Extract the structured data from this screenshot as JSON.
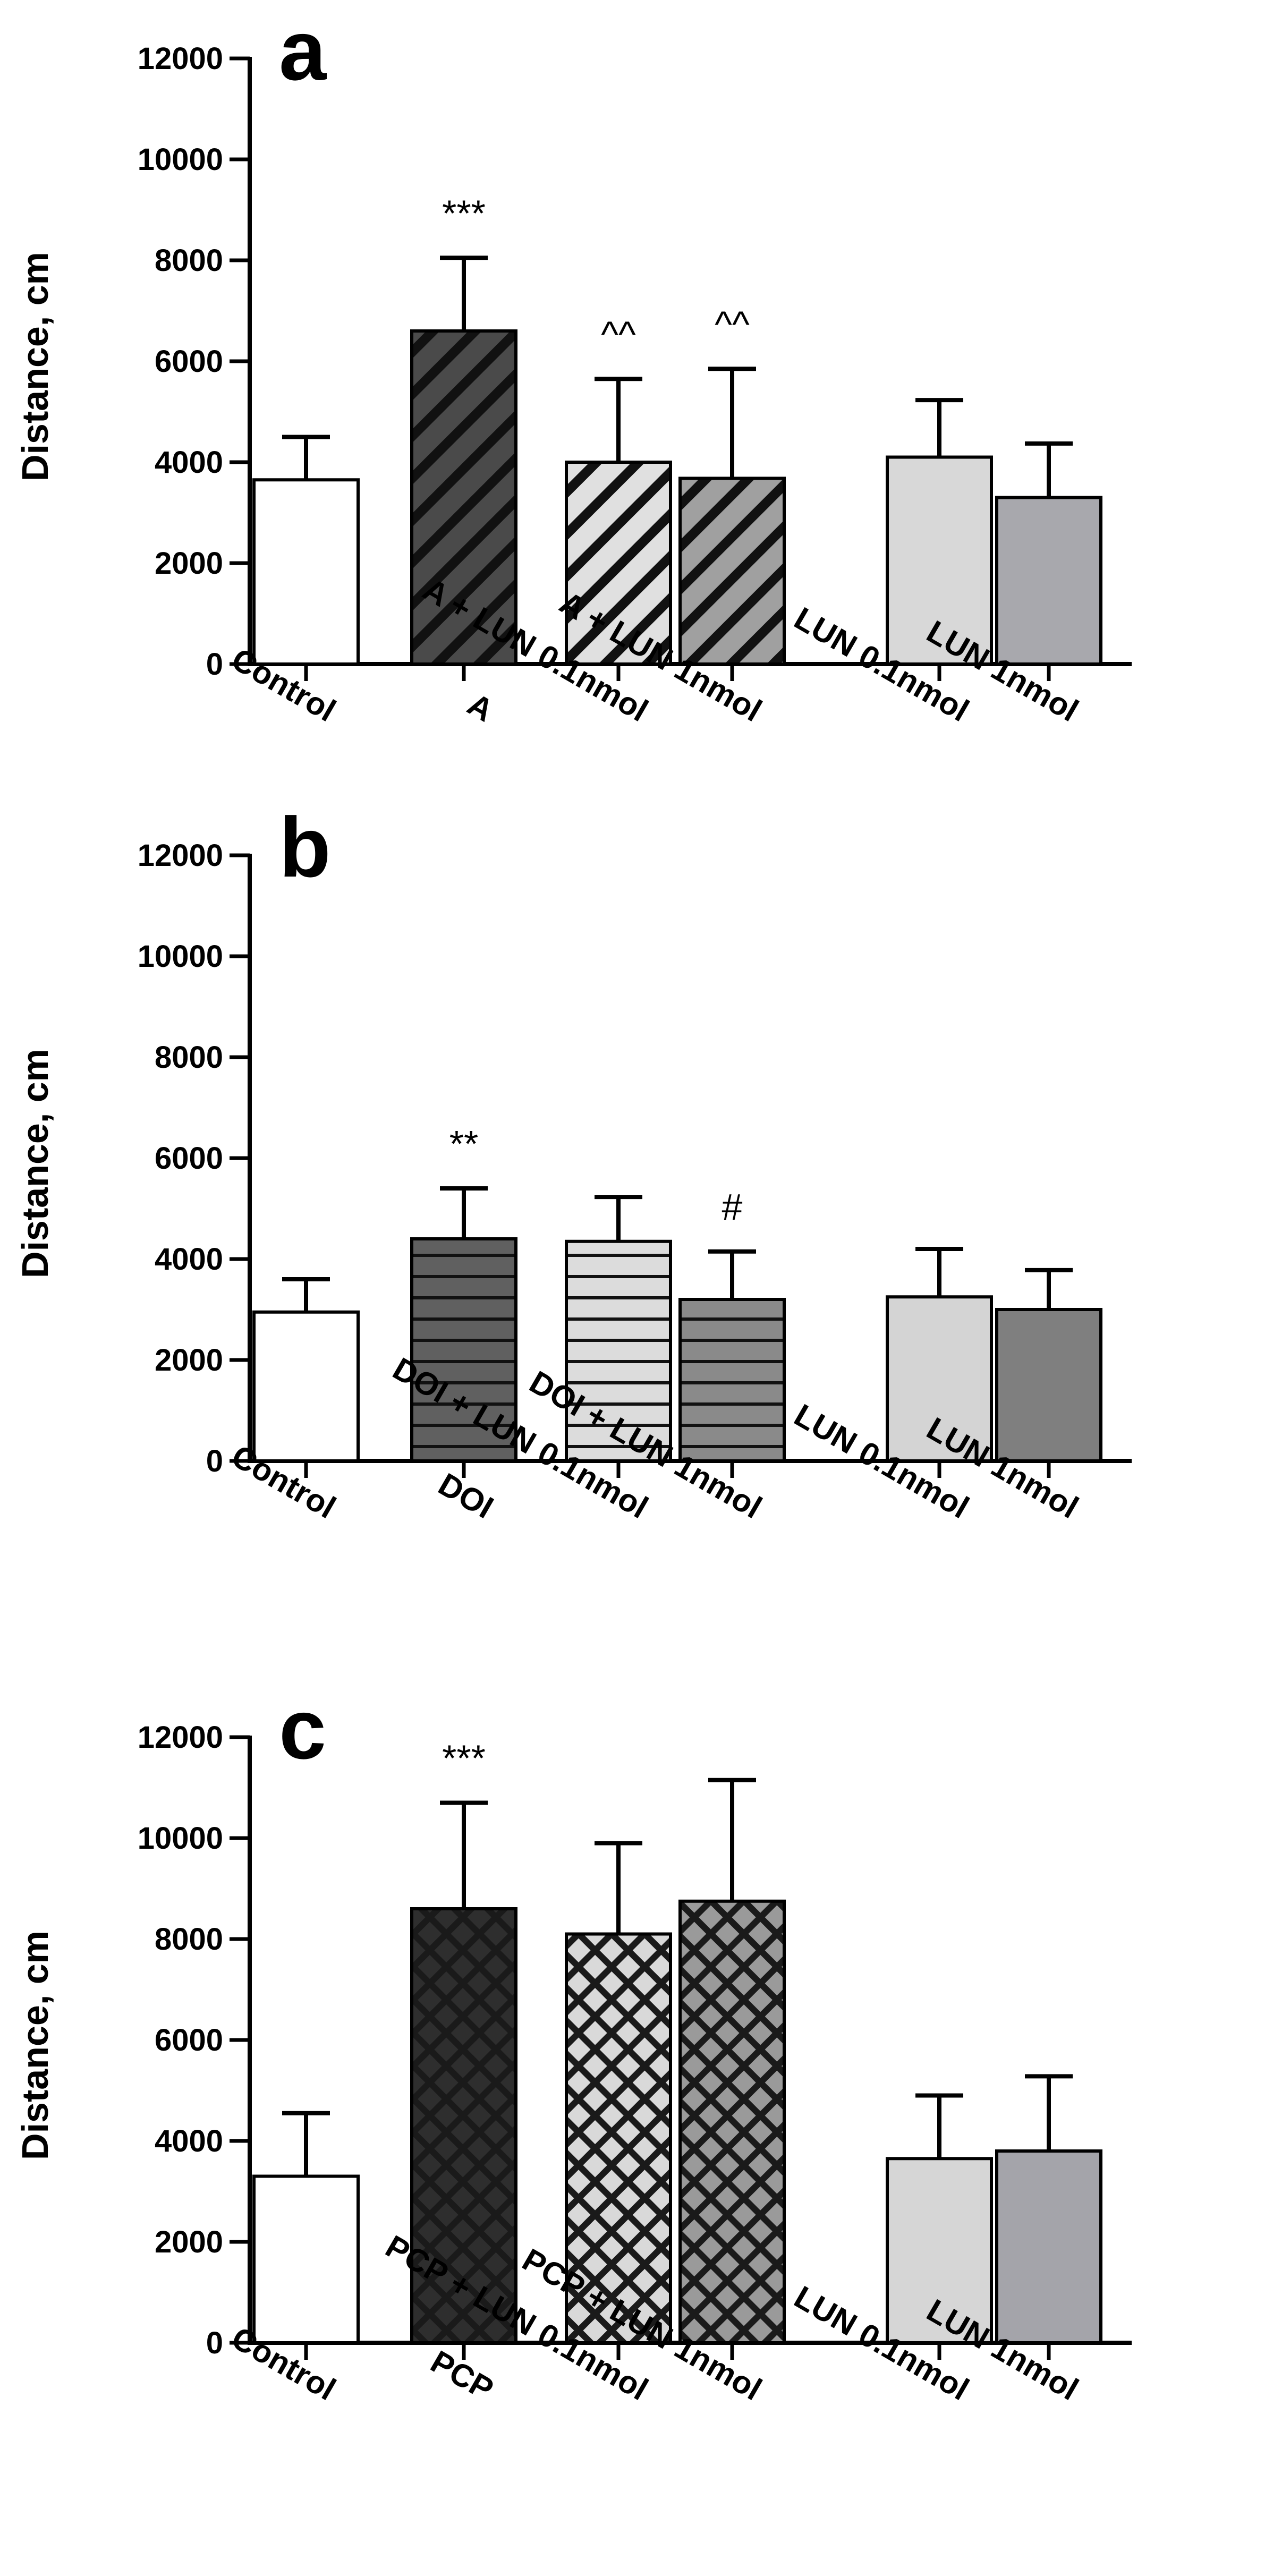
{
  "figure": {
    "ylabel": "Distance, cm"
  },
  "chart_data": [
    {
      "type": "bar",
      "panel": "a",
      "ylabel": "Distance, cm",
      "ylim": [
        0,
        12000
      ],
      "yticks": [
        0,
        2000,
        4000,
        6000,
        8000,
        10000,
        12000
      ],
      "categories": [
        "Control",
        "A",
        "A + LUN 0.1nmol",
        "A + LUN 1nmol",
        "LUN 0.1nmol",
        "LUN 1nmol"
      ],
      "values": [
        3650,
        6600,
        4000,
        3680,
        4100,
        3300
      ],
      "errors": [
        850,
        1450,
        1650,
        2170,
        1130,
        1070
      ],
      "annotations": [
        "",
        "***",
        "^^",
        "^^",
        "",
        ""
      ],
      "fills": [
        "#ffffff",
        "#4a4a4a",
        "#e0e0e0",
        "#a0a0a0",
        "#d8d8d8",
        "#a8a8ad"
      ],
      "patterns": [
        "none",
        "diag",
        "diag",
        "diag",
        "none",
        "none"
      ]
    },
    {
      "type": "bar",
      "panel": "b",
      "ylabel": "Distance, cm",
      "ylim": [
        0,
        12000
      ],
      "yticks": [
        0,
        2000,
        4000,
        6000,
        8000,
        10000,
        12000
      ],
      "categories": [
        "Control",
        "DOI",
        "DOI + LUN 0.1nmol",
        "DOI + LUN 1nmol",
        "LUN 0.1nmol",
        "LUN 1nmol"
      ],
      "values": [
        2950,
        4400,
        4350,
        3200,
        3250,
        3000
      ],
      "errors": [
        650,
        1000,
        880,
        950,
        950,
        780
      ],
      "annotations": [
        "",
        "**",
        "",
        "#",
        "",
        ""
      ],
      "fills": [
        "#ffffff",
        "#606060",
        "#dcdcdc",
        "#8a8a8a",
        "#d4d4d4",
        "#7f7f7f"
      ],
      "patterns": [
        "none",
        "horiz",
        "horiz",
        "horiz",
        "none",
        "none"
      ]
    },
    {
      "type": "bar",
      "panel": "c",
      "ylabel": "Distance, cm",
      "ylim": [
        0,
        12000
      ],
      "yticks": [
        0,
        2000,
        4000,
        6000,
        8000,
        10000,
        12000
      ],
      "categories": [
        "Control",
        "PCP",
        "PCP + LUN 0.1nmol",
        "PCP + LUN 1nmol",
        "LUN 0.1nmol",
        "LUN 1nmol"
      ],
      "values": [
        3300,
        8600,
        8100,
        8750,
        3650,
        3800
      ],
      "errors": [
        1250,
        2100,
        1800,
        2400,
        1250,
        1480
      ],
      "annotations": [
        "",
        "***",
        "",
        "",
        "",
        ""
      ],
      "fills": [
        "#ffffff",
        "#2e2e2e",
        "#d9d9d9",
        "#9a9a9a",
        "#d6d6d6",
        "#a4a4aa"
      ],
      "patterns": [
        "none",
        "check",
        "check",
        "check",
        "none",
        "none"
      ]
    }
  ]
}
